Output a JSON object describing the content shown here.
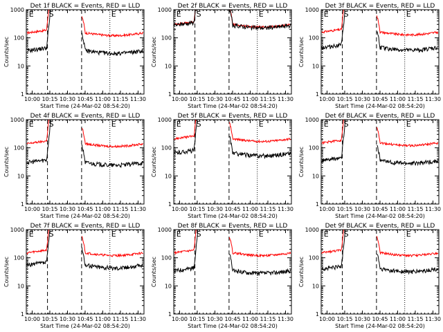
{
  "chart_data": {
    "type": "line",
    "layout": "3x3 grid",
    "shared": {
      "ylabel": "Counts/sec",
      "xlabel": "Start Time (24-Mar-02 08:54:20)",
      "y_scale": "log",
      "ylim": [
        1,
        1000
      ],
      "y_ticks": [
        1,
        10,
        100,
        1000
      ],
      "y_tick_labels": [
        "1",
        "10",
        "100",
        "1000"
      ],
      "xlim_minutes": [
        595,
        695
      ],
      "x_ticks_minutes": [
        600,
        615,
        630,
        645,
        660,
        675,
        690
      ],
      "x_tick_labels": [
        "10:00",
        "10:15",
        "10:30",
        "10:45",
        "11:00",
        "11:15",
        "11:30"
      ],
      "series_colors": {
        "events": "#000000",
        "lld": "#ff0000"
      },
      "markers": [
        {
          "label": "E",
          "minute": 596,
          "style": "dotted"
        },
        {
          "label": "S",
          "minute": 613,
          "style": "dashed"
        },
        {
          "label": "",
          "minute": 642,
          "style": "dashed"
        },
        {
          "label": "E",
          "minute": 666,
          "style": "dotted"
        }
      ]
    },
    "panels": [
      {
        "title": "Det 1f BLACK = Events, RED = LLD",
        "events_level": 35,
        "lld_level": 150
      },
      {
        "title": "Det 2f BLACK = Events, RED = LLD",
        "events_level": 280,
        "lld_level": 300
      },
      {
        "title": "Det 3f BLACK = Events, RED = LLD",
        "events_level": 45,
        "lld_level": 160
      },
      {
        "title": "Det 4f BLACK = Events, RED = LLD",
        "events_level": 30,
        "lld_level": 140
      },
      {
        "title": "Det 5f BLACK = Events, RED = LLD",
        "events_level": 65,
        "lld_level": 210
      },
      {
        "title": "Det 6f BLACK = Events, RED = LLD",
        "events_level": 35,
        "lld_level": 150
      },
      {
        "title": "Det 7f BLACK = Events, RED = LLD",
        "events_level": 55,
        "lld_level": 150
      },
      {
        "title": "Det 8f BLACK = Events, RED = LLD",
        "events_level": 35,
        "lld_level": 150
      },
      {
        "title": "Det 9f BLACK = Events, RED = LLD",
        "events_level": 40,
        "lld_level": 150
      }
    ]
  }
}
